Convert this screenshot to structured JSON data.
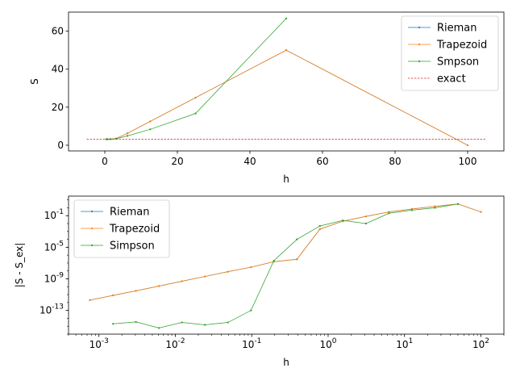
{
  "chart_data": [
    {
      "type": "line",
      "xlabel": "h",
      "ylabel": "S",
      "xlim": [
        -10,
        110
      ],
      "ylim": [
        -3,
        70
      ],
      "xticks": [
        0,
        20,
        40,
        60,
        80,
        100
      ],
      "yticks": [
        0,
        20,
        40,
        60
      ],
      "grid": false,
      "legend_position": "top-right",
      "series": [
        {
          "name": "Rieman",
          "color": "#1f77b4",
          "x": [
            100,
            50,
            25,
            12.5,
            6.25,
            3.125,
            1.5625,
            0.78125,
            0.390625
          ],
          "y": [
            0,
            50,
            25,
            12.5,
            6.25,
            3.5,
            3.2,
            3.14,
            3.1416
          ]
        },
        {
          "name": "Trapezoid",
          "color": "#ff7f0e",
          "x": [
            100,
            50,
            25,
            12.5,
            6.25,
            3.125,
            1.5625,
            0.78125,
            0.390625
          ],
          "y": [
            0,
            50,
            25,
            12.5,
            6.25,
            3.5,
            3.2,
            3.14,
            3.1416
          ]
        },
        {
          "name": "Smpson",
          "color": "#2ca02c",
          "x": [
            50,
            25,
            12.5,
            6.25,
            3.125,
            1.5625,
            0.78125,
            0.390625
          ],
          "y": [
            66.67,
            16.67,
            8.33,
            4.9,
            3.4,
            3.15,
            3.1416,
            3.1416
          ]
        },
        {
          "name": "exact",
          "color": "#d62728",
          "dashed": true,
          "x": [
            -5,
            105
          ],
          "y": [
            3.14159,
            3.14159
          ]
        }
      ]
    },
    {
      "type": "line",
      "xscale": "log",
      "yscale": "log",
      "xlabel": "h",
      "ylabel": "|S - S_ex|",
      "xlim": [
        0.0004,
        200
      ],
      "ylim": [
        1e-16,
        30
      ],
      "xticks": [
        0.001,
        0.01,
        0.1,
        1,
        10,
        100
      ],
      "xtick_labels": [
        "10^-3",
        "10^-2",
        "10^-1",
        "10^0",
        "10^1",
        "10^2"
      ],
      "yticks": [
        1e-13,
        1e-09,
        1e-05,
        0.1
      ],
      "ytick_labels": [
        "10^-13",
        "10^-9",
        "10^-5",
        "10^-1"
      ],
      "grid": false,
      "legend_position": "top-left",
      "series": [
        {
          "name": "Rieman",
          "color": "#1f77b4",
          "x": [
            100,
            50,
            25,
            12.5,
            6.25,
            3.125,
            1.5625,
            0.78125,
            0.390625,
            0.195,
            0.0977,
            0.0488,
            0.0244,
            0.0122,
            0.0061,
            0.00305,
            0.00153,
            0.00076
          ],
          "y": [
            0.3,
            3,
            1.5,
            0.7,
            0.3,
            0.08,
            0.02,
            0.002,
            3e-07,
            1.5e-07,
            3e-08,
            8e-09,
            2e-09,
            5e-10,
            1.2e-10,
            3e-11,
            8e-12,
            2e-12
          ]
        },
        {
          "name": "Trapezoid",
          "color": "#ff7f0e",
          "x": [
            100,
            50,
            25,
            12.5,
            6.25,
            3.125,
            1.5625,
            0.78125,
            0.390625,
            0.195,
            0.0977,
            0.0488,
            0.0244,
            0.0122,
            0.0061,
            0.00305,
            0.00153,
            0.00076
          ],
          "y": [
            0.3,
            3,
            1.5,
            0.7,
            0.3,
            0.08,
            0.02,
            0.002,
            3e-07,
            1.5e-07,
            3e-08,
            8e-09,
            2e-09,
            5e-10,
            1.2e-10,
            3e-11,
            8e-12,
            2e-12
          ]
        },
        {
          "name": "Simpson",
          "color": "#2ca02c",
          "x": [
            50,
            25,
            12.5,
            6.25,
            3.125,
            1.5625,
            0.78125,
            0.390625,
            0.195,
            0.0977,
            0.0488,
            0.0244,
            0.0122,
            0.0061,
            0.00305,
            0.00153
          ],
          "y": [
            3,
            1,
            0.5,
            0.2,
            0.01,
            0.025,
            0.005,
            0.0001,
            2e-07,
            1e-13,
            3e-15,
            1.5e-15,
            3e-15,
            6e-16,
            3.5e-15,
            2e-15
          ]
        }
      ]
    }
  ]
}
